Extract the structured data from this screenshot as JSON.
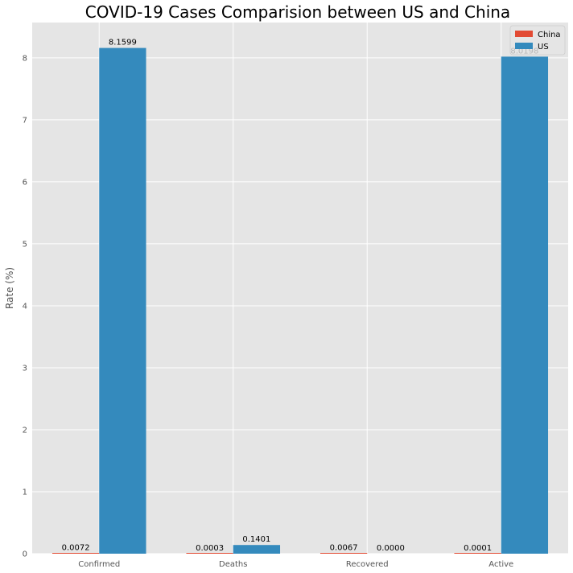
{
  "chart_data": {
    "type": "bar",
    "title": "COVID-19 Cases Comparision between US and China",
    "xlabel": "",
    "ylabel": "Rate (%)",
    "categories": [
      "Confirmed",
      "Deaths",
      "Recovered",
      "Active"
    ],
    "series": [
      {
        "name": "China",
        "values": [
          0.0072,
          0.0003,
          0.0067,
          0.0001
        ],
        "labels": [
          "0.0072",
          "0.0003",
          "0.0067",
          "0.0001"
        ],
        "color": "#E24A33"
      },
      {
        "name": "US",
        "values": [
          8.1599,
          0.1401,
          0.0,
          8.0198
        ],
        "labels": [
          "8.1599",
          "0.1401",
          "0.0000",
          "8.0198"
        ],
        "color": "#348ABD"
      }
    ],
    "ylim": [
      0,
      8.57
    ],
    "yticks": [
      "0",
      "1",
      "2",
      "3",
      "4",
      "5",
      "6",
      "7",
      "8"
    ],
    "grid": true,
    "legend_position": "top-right",
    "background_color": "#E5E5E5",
    "grid_color": "#FFFFFF"
  }
}
